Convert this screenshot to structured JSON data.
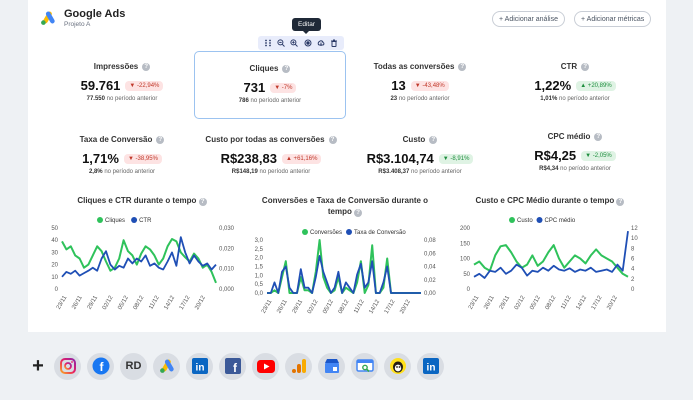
{
  "header": {
    "title": "Google Ads",
    "subtitle": "Projeto A",
    "add_analysis": "+ Adicionar análise",
    "add_metrics": "+ Adicionar métricas"
  },
  "tooltip": "Editar",
  "toolbar_icons": [
    "drag-handle-icon",
    "zoom-out-icon",
    "zoom-in-icon",
    "target-icon",
    "upload-icon",
    "trash-icon"
  ],
  "metrics": [
    {
      "label": "Impressões",
      "value": "59.761",
      "change": "▼ -22,94%",
      "dir": "down",
      "prev_value": "77.550",
      "prev_text": " no período anterior"
    },
    {
      "label": "Cliques",
      "value": "731",
      "change": "▼ -7%",
      "dir": "down",
      "prev_value": "786",
      "prev_text": " no período anterior"
    },
    {
      "label": "Todas as conversões",
      "value": "13",
      "change": "▼ -43,48%",
      "dir": "down",
      "prev_value": "23",
      "prev_text": " no período anterior"
    },
    {
      "label": "CTR",
      "value": "1,22%",
      "change": "▲ +20,89%",
      "dir": "up",
      "prev_value": "1,01%",
      "prev_text": " no período anterior"
    },
    {
      "label": "Taxa de Conversão",
      "value": "1,71%",
      "change": "▼ -38,95%",
      "dir": "down",
      "prev_value": "2,8%",
      "prev_text": " no período anterior"
    },
    {
      "label": "Custo por todas as conversões",
      "value": "R$238,83",
      "change": "▲ +61,16%",
      "dir": "down",
      "prev_value": "R$148,19",
      "prev_text": " no período anterior"
    },
    {
      "label": "Custo",
      "value": "R$3.104,74",
      "change": "▼ -8,91%",
      "dir": "up",
      "prev_value": "R$3.408,37",
      "prev_text": " no período anterior"
    },
    {
      "label": "CPC médio",
      "value": "R$4,25",
      "change": "▼ -2,05%",
      "dir": "up",
      "prev_value": "R$4,34",
      "prev_text": " no período anterior"
    }
  ],
  "charts": [
    {
      "title": "Cliques e CTR durante o tempo",
      "series_names": [
        "Cliques",
        "CTR"
      ],
      "left_ticks": [
        "50",
        "40",
        "30",
        "20",
        "10",
        "0"
      ],
      "right_ticks": [
        "0,030",
        "0,020",
        "0,010",
        "0,000"
      ],
      "x_labels": [
        "23/11",
        "26/11",
        "29/11",
        "02/12",
        "05/12",
        "08/12",
        "11/12",
        "14/12",
        "17/12",
        "20/12"
      ]
    },
    {
      "title": "Conversões e Taxa de Conversão durante o tempo",
      "series_names": [
        "Conversões",
        "Taxa de Conversão"
      ],
      "left_ticks": [
        "3,0",
        "2,5",
        "2,0",
        "1,5",
        "1,0",
        "0,5",
        "0,0"
      ],
      "right_ticks": [
        "0,08",
        "0,06",
        "0,04",
        "0,02",
        "0,00"
      ],
      "x_labels": [
        "23/11",
        "26/11",
        "29/11",
        "02/12",
        "05/12",
        "08/12",
        "11/12",
        "14/12",
        "17/12",
        "20/12"
      ]
    },
    {
      "title": "Custo e CPC Médio durante o tempo",
      "series_names": [
        "Custo",
        "CPC médio"
      ],
      "left_ticks": [
        "200",
        "150",
        "100",
        "50",
        "0"
      ],
      "right_ticks": [
        "12",
        "10",
        "8",
        "6",
        "4",
        "2",
        "0"
      ],
      "x_labels": [
        "23/11",
        "26/11",
        "29/11",
        "02/12",
        "05/12",
        "08/12",
        "11/12",
        "14/12",
        "17/12",
        "20/12"
      ]
    }
  ],
  "colors": {
    "green": "#2fc25b",
    "blue": "#1f4fb5",
    "selected_border": "#9cc3f0"
  },
  "integrations": [
    {
      "name": "instagram-icon",
      "text": ""
    },
    {
      "name": "facebook-icon",
      "text": "f"
    },
    {
      "name": "rd-station-icon",
      "text": "RD"
    },
    {
      "name": "google-ads-icon",
      "text": ""
    },
    {
      "name": "linkedin-icon",
      "text": "in"
    },
    {
      "name": "facebook-pages-icon",
      "text": "f"
    },
    {
      "name": "youtube-icon",
      "text": ""
    },
    {
      "name": "google-analytics-icon",
      "text": ""
    },
    {
      "name": "google-my-business-icon",
      "text": ""
    },
    {
      "name": "search-console-icon",
      "text": ""
    },
    {
      "name": "mailchimp-icon",
      "text": ""
    },
    {
      "name": "linkedin-pages-icon",
      "text": "in"
    }
  ]
}
